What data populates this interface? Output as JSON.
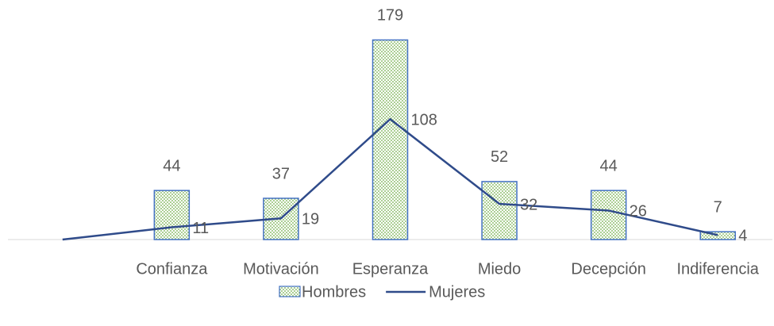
{
  "chart_data": {
    "type": "bar-line",
    "categories": [
      null,
      "Confianza",
      "Motivación",
      "Esperanza",
      "Miedo",
      "Decepción",
      "Indiferencia"
    ],
    "series": [
      {
        "name": "Hombres",
        "type": "bar",
        "color": "#4472c4",
        "fill": "#70ad47",
        "values": [
          null,
          44,
          37,
          179,
          52,
          44,
          7
        ]
      },
      {
        "name": "Mujeres",
        "type": "line",
        "color": "#2f4b8a",
        "values": [
          0,
          11,
          19,
          108,
          32,
          26,
          4
        ]
      }
    ],
    "ylim": [
      0,
      180
    ],
    "legend": "bottom"
  }
}
